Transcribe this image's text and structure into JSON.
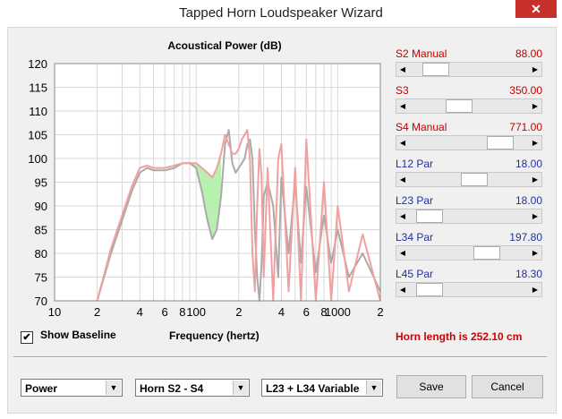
{
  "window": {
    "title": "Tapped Horn Loudspeaker Wizard",
    "close_glyph": "✕"
  },
  "chart_data": {
    "type": "line",
    "title": "Acoustical Power (dB)",
    "xlabel": "Frequency (hertz)",
    "x_scale": "log",
    "xlim": [
      10,
      2000
    ],
    "ylim": [
      70,
      120
    ],
    "y_ticks": [
      "70",
      "75",
      "80",
      "85",
      "90",
      "95",
      "100",
      "105",
      "110",
      "115",
      "120"
    ],
    "x_ticks": [
      {
        "label": "10",
        "value": 10
      },
      {
        "label": "2",
        "value": 20
      },
      {
        "label": "4",
        "value": 40
      },
      {
        "label": "6",
        "value": 60
      },
      {
        "label": "8",
        "value": 80
      },
      {
        "label": "100",
        "value": 100
      },
      {
        "label": "2",
        "value": 200
      },
      {
        "label": "4",
        "value": 400
      },
      {
        "label": "6",
        "value": 600
      },
      {
        "label": "8",
        "value": 800
      },
      {
        "label": "1000",
        "value": 1000
      },
      {
        "label": "2",
        "value": 2000
      }
    ],
    "grid": true,
    "series": [
      {
        "color": "#aaaaaa",
        "x": [
          20,
          25,
          30,
          35,
          40,
          45,
          50,
          60,
          70,
          80,
          90,
          100,
          110,
          120,
          130,
          140,
          150,
          160,
          170,
          180,
          190,
          200,
          210,
          220,
          230,
          240,
          250,
          260,
          270,
          280,
          290,
          300,
          320,
          350,
          380,
          400,
          450,
          500,
          550,
          600,
          700,
          800,
          900,
          1000,
          1200,
          1500,
          2000
        ],
        "y": [
          70,
          80,
          87,
          93,
          97,
          98,
          97.5,
          97.5,
          98,
          99,
          99,
          98,
          93,
          87,
          83,
          85,
          92,
          103,
          106,
          99,
          97,
          98,
          99,
          100,
          103,
          104,
          100,
          85,
          75,
          70,
          78,
          92,
          95,
          90,
          75,
          96,
          80,
          95,
          78,
          94,
          76,
          88,
          78,
          85,
          75,
          80,
          72
        ]
      },
      {
        "color": "#f0a0a0",
        "x": [
          20,
          25,
          30,
          35,
          40,
          45,
          50,
          60,
          70,
          80,
          90,
          100,
          110,
          120,
          130,
          140,
          150,
          160,
          170,
          180,
          190,
          200,
          210,
          220,
          230,
          240,
          250,
          260,
          270,
          280,
          290,
          300,
          320,
          350,
          380,
          400,
          450,
          500,
          550,
          600,
          700,
          800,
          900,
          1000,
          1200,
          1500,
          2000
        ],
        "y": [
          70,
          81,
          88,
          94,
          98,
          98.5,
          98,
          98,
          98.5,
          99,
          99,
          99,
          98,
          97,
          96,
          98,
          101,
          105,
          103,
          101,
          101,
          102,
          104,
          105,
          106,
          100,
          80,
          72,
          90,
          102,
          96,
          75,
          98,
          70,
          100,
          103,
          72,
          98,
          70,
          104,
          70,
          95,
          70,
          90,
          72,
          84,
          70
        ]
      }
    ],
    "fill_between": {
      "color": "#b8f0b0",
      "x_range": [
        90,
        150
      ]
    }
  },
  "parameters": [
    {
      "label": "S2  Manual",
      "value": "88.00",
      "color": "red",
      "position": 0.14
    },
    {
      "label": "S3",
      "value": "350.00",
      "color": "red",
      "position": 0.39
    },
    {
      "label": "S4  Manual",
      "value": "771.00",
      "color": "red",
      "position": 0.84
    },
    {
      "label": "L12  Par",
      "value": "18.00",
      "color": "blue",
      "position": 0.56
    },
    {
      "label": "L23  Par",
      "value": "18.00",
      "color": "blue",
      "position": 0.08
    },
    {
      "label": "L34  Par",
      "value": "197.80",
      "color": "blue",
      "position": 0.69
    },
    {
      "label": "L45  Par",
      "value": "18.30",
      "color": "blue",
      "position": 0.08
    }
  ],
  "baseline": {
    "label": "Show Baseline",
    "checked": true
  },
  "horn_length": "Horn length is 252.10 cm",
  "selects": {
    "mode": "Power",
    "horn": "Horn S2 - S4",
    "variable": "L23 + L34 Variable"
  },
  "buttons": {
    "save": "Save",
    "cancel": "Cancel"
  },
  "arrows": {
    "left": "◀",
    "right": "▶",
    "down": "▼"
  }
}
